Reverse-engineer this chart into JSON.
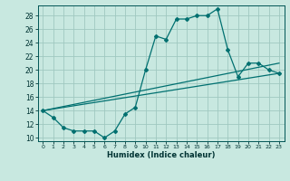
{
  "xlabel": "Humidex (Indice chaleur)",
  "ylabel": "",
  "bg_color": "#c8e8e0",
  "grid_color": "#a0c8c0",
  "line_color": "#007070",
  "xlim": [
    -0.5,
    23.5
  ],
  "ylim": [
    9.5,
    29.5
  ],
  "yticks": [
    10,
    12,
    14,
    16,
    18,
    20,
    22,
    24,
    26,
    28
  ],
  "xticks": [
    0,
    1,
    2,
    3,
    4,
    5,
    6,
    7,
    8,
    9,
    10,
    11,
    12,
    13,
    14,
    15,
    16,
    17,
    18,
    19,
    20,
    21,
    22,
    23
  ],
  "line1_x": [
    0,
    1,
    2,
    3,
    4,
    5,
    6,
    7,
    8,
    9,
    10,
    11,
    12,
    13,
    14,
    15,
    16,
    17,
    18,
    19,
    20,
    21,
    22,
    23
  ],
  "line1_y": [
    14,
    13,
    11.5,
    11,
    11,
    11,
    10,
    11,
    13.5,
    14.5,
    20,
    25,
    24.5,
    27.5,
    27.5,
    28,
    28,
    29,
    23,
    19,
    21,
    21,
    20,
    19.5
  ],
  "line2_x": [
    0,
    23
  ],
  "line2_y": [
    14,
    19.5
  ],
  "line3_x": [
    0,
    23
  ],
  "line3_y": [
    14,
    21
  ],
  "xlabel_fontsize": 6.0,
  "tick_fontsize": 5.5
}
